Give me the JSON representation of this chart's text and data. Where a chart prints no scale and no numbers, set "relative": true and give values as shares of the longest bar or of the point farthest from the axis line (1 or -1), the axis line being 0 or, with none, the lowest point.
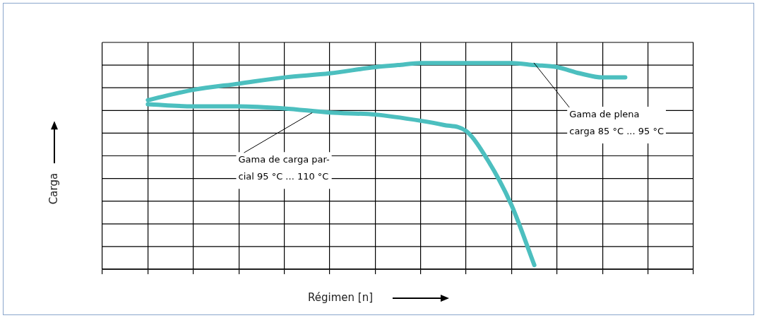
{
  "chart_data": {
    "type": "line",
    "relative": true,
    "xlabel": "Régimen [n]",
    "ylabel": "Carga",
    "grid": true,
    "marker": "none",
    "line_style": "solid",
    "categories": [
      null,
      null,
      null,
      null,
      null,
      null,
      null,
      null,
      null,
      null,
      null,
      null,
      null,
      null,
      null,
      null,
      null,
      null,
      null,
      null,
      null,
      null,
      null,
      null,
      null,
      null,
      null
    ],
    "series": [
      {
        "color": "#4cbfbf",
        "values": [
          null,
          null,
          0.82,
          null,
          0.87,
          null,
          0.9,
          null,
          0.93,
          null,
          0.95,
          null,
          0.98,
          0.99,
          1,
          null,
          1,
          null,
          1,
          0.99,
          0.98,
          0.95,
          0.93,
          0.93,
          null,
          null,
          null
        ]
      },
      {
        "color": "#4cbfbf",
        "values": [
          null,
          null,
          0.8,
          null,
          0.79,
          null,
          0.79,
          null,
          0.78,
          null,
          0.76,
          null,
          0.75,
          null,
          0.72,
          0.7,
          0.67,
          0.52,
          0.31,
          0.02,
          null,
          null,
          null,
          null,
          null,
          null,
          null
        ]
      }
    ],
    "annotations": [
      "Gama de plena\ncarga 85 °C ... 95 °C",
      "Gama de carga par-\ncial 95 °C ... 110 °C"
    ]
  }
}
